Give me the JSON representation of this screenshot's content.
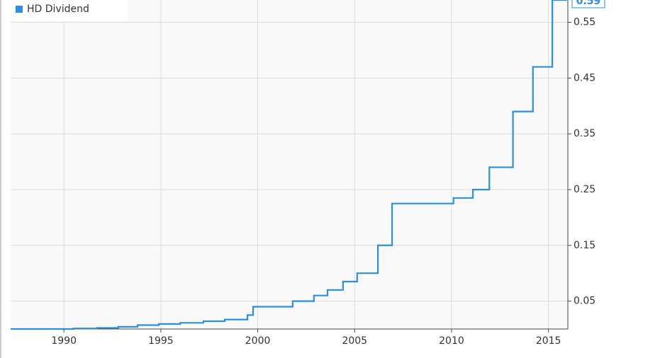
{
  "chart_data": {
    "type": "line",
    "step": true,
    "series": [
      {
        "name": "HD Dividend",
        "color": "#2b8fe0",
        "x": [
          1987.25,
          1990.5,
          1991.7,
          1992.8,
          1993.8,
          1994.9,
          1996.0,
          1997.2,
          1998.3,
          1999.47,
          1999.76,
          2001.8,
          2002.9,
          2003.6,
          2004.4,
          2005.13,
          2006.2,
          2006.93,
          2010.1,
          2011.1,
          2011.95,
          2013.17,
          2014.2,
          2015.2,
          2015.95
        ],
        "values": [
          0.0,
          0.001,
          0.002,
          0.004,
          0.007,
          0.009,
          0.011,
          0.014,
          0.017,
          0.025,
          0.04,
          0.05,
          0.06,
          0.07,
          0.085,
          0.1,
          0.15,
          0.225,
          0.235,
          0.25,
          0.29,
          0.39,
          0.47,
          0.59,
          0.59
        ]
      }
    ],
    "xlim": [
      1987.25,
      2016
    ],
    "xticks": [
      1990,
      1995,
      2000,
      2005,
      2010,
      2015
    ],
    "ylim": [
      0,
      0.59
    ],
    "yticks": [
      0.05,
      0.15,
      0.25,
      0.35,
      0.45,
      0.55
    ],
    "grid": true,
    "legend": "top-left"
  }
}
